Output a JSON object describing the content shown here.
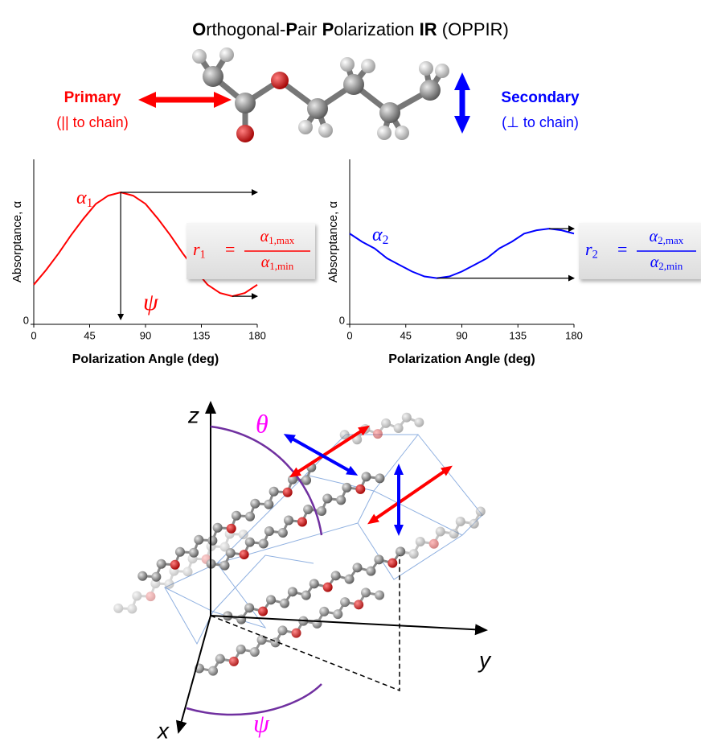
{
  "title": {
    "segments": [
      {
        "text": "O",
        "bold": true
      },
      {
        "text": "rthogonal-",
        "bold": false
      },
      {
        "text": "P",
        "bold": true
      },
      {
        "text": "air ",
        "bold": false
      },
      {
        "text": "P",
        "bold": true
      },
      {
        "text": "olarization ",
        "bold": false
      },
      {
        "text": "IR",
        "bold": true
      },
      {
        "text": " (OPPIR)",
        "bold": false
      }
    ]
  },
  "molecule": {
    "primary": {
      "label": "Primary",
      "note": "(|| to chain)",
      "color": "#ff0000"
    },
    "secondary": {
      "label": "Secondary",
      "note": "(⊥ to chain)",
      "color": "#0000ff"
    }
  },
  "chart_data": [
    {
      "type": "line",
      "color": "#ff0000",
      "x": [
        0,
        10,
        20,
        30,
        40,
        50,
        60,
        70,
        80,
        90,
        100,
        110,
        120,
        130,
        140,
        150,
        160,
        170,
        180
      ],
      "values": [
        0.24,
        0.33,
        0.43,
        0.54,
        0.64,
        0.73,
        0.78,
        0.8,
        0.78,
        0.73,
        0.64,
        0.54,
        0.43,
        0.33,
        0.24,
        0.19,
        0.17,
        0.19,
        0.24
      ],
      "xlim": [
        0,
        180
      ],
      "xticks": [
        0,
        45,
        90,
        135,
        180
      ],
      "ylim": [
        0,
        1
      ],
      "yticks": [
        0
      ],
      "xlabel": "Polarization Angle (deg)",
      "ylabel": "Absorptance, α",
      "curve_label": {
        "symbol": "α",
        "subscript": "1"
      },
      "angle_label": "ψ",
      "ratio": {
        "lhs": "r",
        "lhs_sub": "1",
        "equals": "=",
        "num": "α",
        "num_sub": "1,max",
        "den": "α",
        "den_sub": "1,min"
      }
    },
    {
      "type": "line",
      "color": "#0000ff",
      "x": [
        0,
        10,
        20,
        30,
        40,
        50,
        60,
        70,
        80,
        90,
        100,
        110,
        120,
        130,
        140,
        150,
        160,
        170,
        180
      ],
      "values": [
        0.55,
        0.5,
        0.46,
        0.4,
        0.36,
        0.32,
        0.29,
        0.28,
        0.29,
        0.32,
        0.36,
        0.4,
        0.46,
        0.5,
        0.55,
        0.57,
        0.58,
        0.57,
        0.55
      ],
      "xlim": [
        0,
        180
      ],
      "xticks": [
        0,
        45,
        90,
        135,
        180
      ],
      "ylim": [
        0,
        1
      ],
      "yticks": [
        0
      ],
      "xlabel": "Polarization Angle (deg)",
      "ylabel": "Absorptance, α",
      "curve_label": {
        "symbol": "α",
        "subscript": "2"
      },
      "ratio": {
        "lhs": "r",
        "lhs_sub": "2",
        "equals": "=",
        "num": "α",
        "num_sub": "2,max",
        "den": "α",
        "den_sub": "2,min"
      }
    }
  ],
  "diagram": {
    "z": "z",
    "y": "y",
    "x": "x",
    "theta": "θ",
    "psi": "ψ"
  }
}
